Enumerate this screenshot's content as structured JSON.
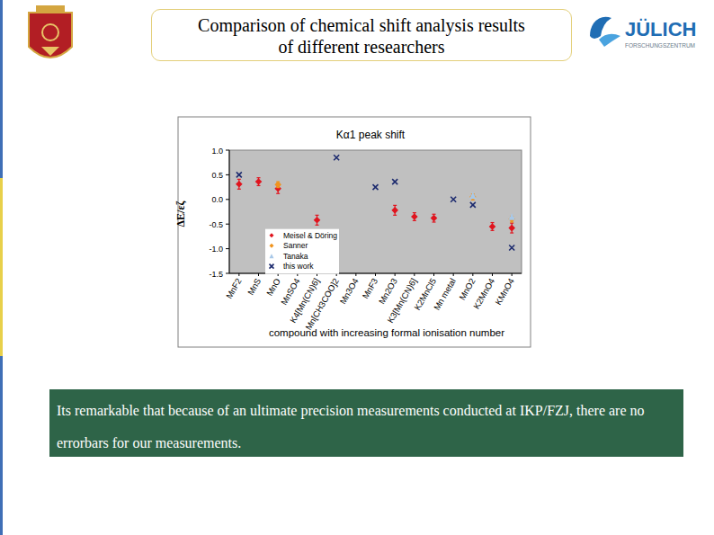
{
  "header": {
    "title_lines": [
      "Comparison of chemical shift analysis results",
      "of different researchers"
    ],
    "logo_name": "JÜLICH",
    "logo_subtitle": "FORSCHUNGSZENTRUM"
  },
  "chart_data": {
    "type": "scatter",
    "title": "Kα1 peak shift",
    "x_label": "compound with increasing  formal ionisation number",
    "y_label": "ΔE/εζ",
    "categories": [
      "MnF2",
      "MnS",
      "MnO",
      "MnSO4",
      "K4[Mn(CN)6]",
      "Mn[CH3COO]2",
      "Mn3O4",
      "MnF3",
      "Mn2O3",
      "K3[Mn(CN)6]",
      "K2MnCl5",
      "Mn metal",
      "MnO2",
      "K2MnO4",
      "KMnO4"
    ],
    "ylim": [
      -1.5,
      1.0
    ],
    "yticks": [
      {
        "value": 1.0,
        "label": "1.0"
      },
      0.5,
      {
        "value": 0.0,
        "label": "0.0"
      },
      -0.5,
      {
        "value": -1.0,
        "label": "-1.0"
      },
      -1.5
    ],
    "grid": false,
    "legend": "lower left",
    "series": [
      {
        "name": "Meisel & Döring",
        "color": "#e0141e",
        "marker": "diamond",
        "values": [
          0.31,
          0.36,
          0.22,
          null,
          -0.42,
          null,
          null,
          null,
          -0.22,
          -0.35,
          -0.38,
          null,
          null,
          -0.55,
          -0.58
        ],
        "errors": [
          0.1,
          0.08,
          0.1,
          null,
          0.1,
          null,
          null,
          null,
          0.1,
          0.08,
          0.08,
          null,
          null,
          0.08,
          0.1
        ]
      },
      {
        "name": "Sanner",
        "color": "#f0941e",
        "marker": "diamond",
        "values": [
          null,
          null,
          0.3,
          null,
          null,
          null,
          null,
          null,
          null,
          null,
          null,
          null,
          0.05,
          null,
          -0.4
        ],
        "errors": [
          null,
          null,
          0.06,
          null,
          null,
          null,
          null,
          null,
          null,
          null,
          null,
          null,
          0.06,
          null,
          0.06
        ]
      },
      {
        "name": "Tanaka",
        "color": "#a8c8e8",
        "marker": "triangle",
        "values": [
          null,
          null,
          null,
          null,
          null,
          null,
          null,
          null,
          null,
          null,
          null,
          null,
          0.08,
          null,
          -0.35
        ]
      },
      {
        "name": "this work",
        "color": "#1c2a6e",
        "marker": "x",
        "values": [
          0.5,
          null,
          null,
          null,
          null,
          0.85,
          null,
          0.25,
          0.36,
          null,
          null,
          0.0,
          -0.11,
          null,
          -0.98
        ]
      }
    ]
  },
  "note": "Its remarkable that because of an ultimate precision measurements conducted at IKP/FZJ, there are no errorbars for our measurements."
}
